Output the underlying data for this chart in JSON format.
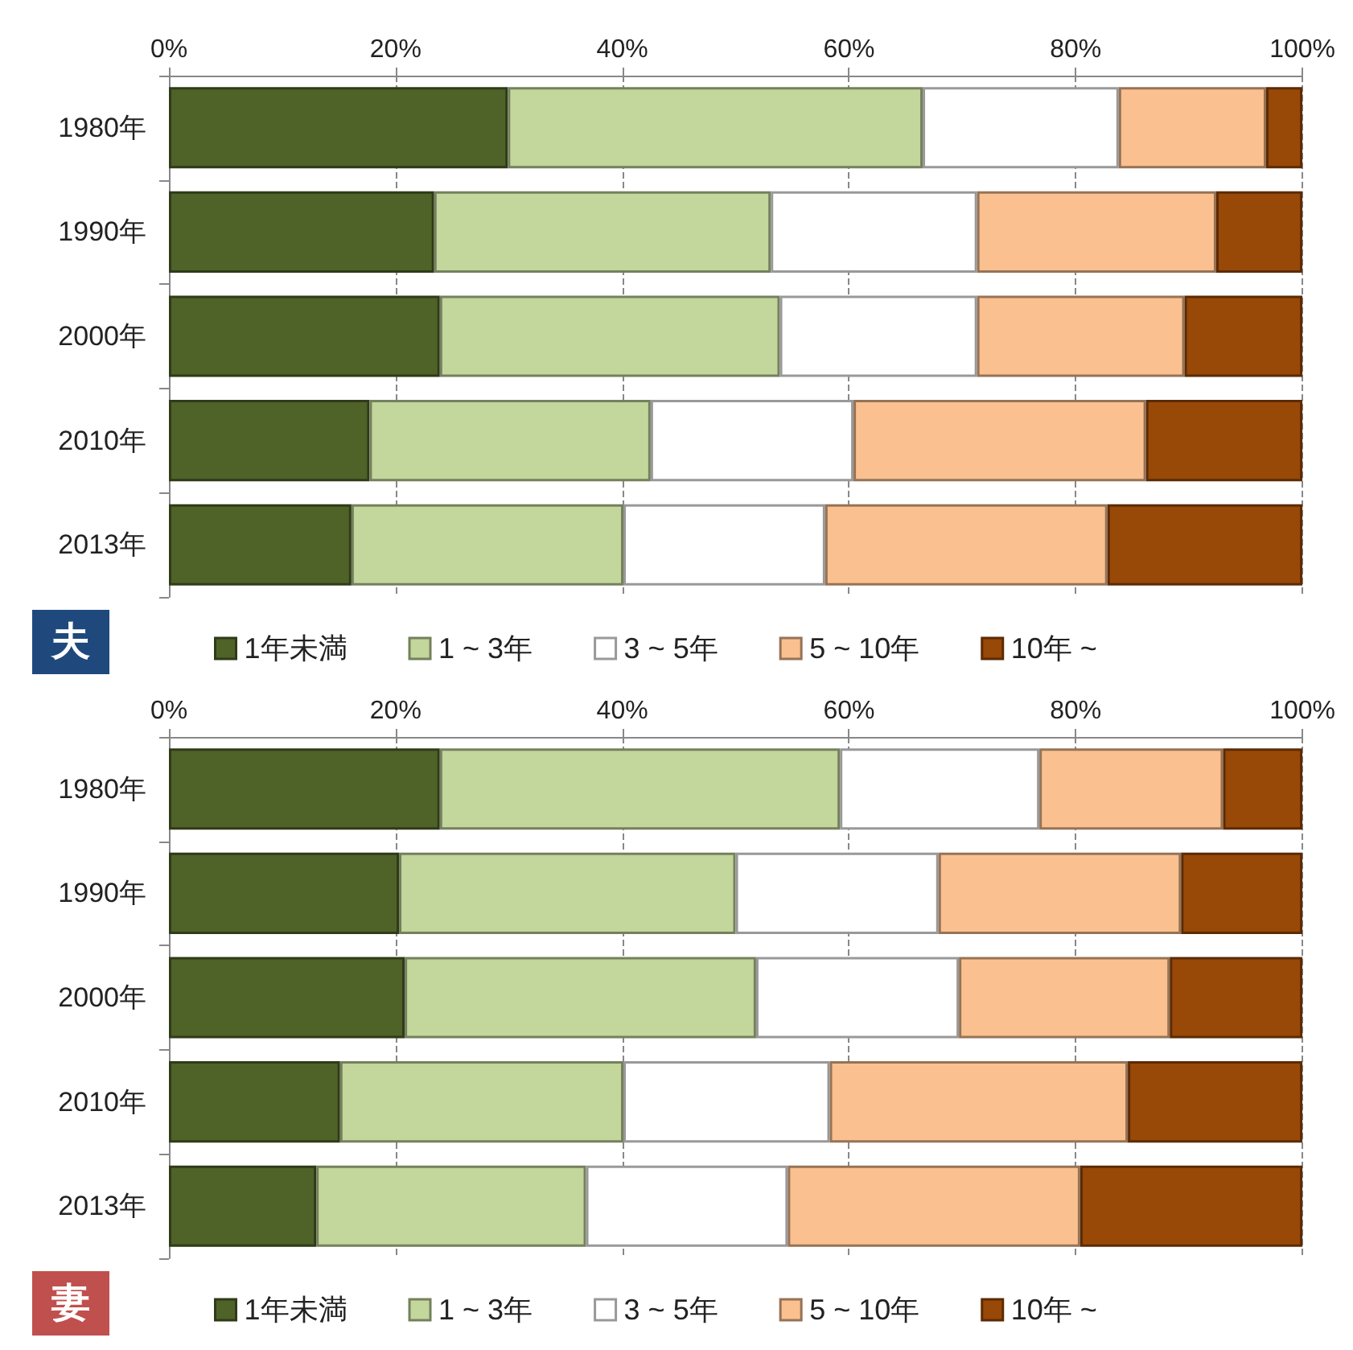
{
  "chart_data": [
    {
      "type": "bar",
      "orientation": "horizontal",
      "stacked": true,
      "title": "夫",
      "categories": [
        "1980年",
        "1990年",
        "2000年",
        "2010年",
        "2013年"
      ],
      "xlim": [
        0,
        100
      ],
      "xticks": [
        {
          "value": 0,
          "label": "0%"
        },
        {
          "value": 20,
          "label": "20%"
        },
        {
          "value": 40,
          "label": "40%"
        },
        {
          "value": 60,
          "label": "60%"
        },
        {
          "value": 80,
          "label": "80%"
        },
        {
          "value": 100,
          "label": "100%"
        }
      ],
      "grid": "x",
      "legend": "bottom",
      "series": [
        {
          "name": "1年未満",
          "color": "#4f6228",
          "values": [
            29.9,
            23.4,
            23.9,
            17.7,
            16.1
          ]
        },
        {
          "name": "1 ~ 3年",
          "color": "#c3d69b",
          "values": [
            36.6,
            29.7,
            30.0,
            24.8,
            24.0
          ]
        },
        {
          "name": "3 ~ 5年",
          "color": "#ffffff",
          "values": [
            17.3,
            18.2,
            17.4,
            17.9,
            17.8
          ]
        },
        {
          "name": "5 ~ 10年",
          "color": "#fac090",
          "values": [
            13.0,
            21.1,
            18.3,
            25.8,
            24.9
          ]
        },
        {
          "name": "10年 ~",
          "color": "#984807",
          "values": [
            3.2,
            7.6,
            10.4,
            13.8,
            17.2
          ]
        }
      ]
    },
    {
      "type": "bar",
      "orientation": "horizontal",
      "stacked": true,
      "title": "妻",
      "categories": [
        "1980年",
        "1990年",
        "2000年",
        "2010年",
        "2013年"
      ],
      "xlim": [
        0,
        100
      ],
      "xticks": [
        {
          "value": 0,
          "label": "0%"
        },
        {
          "value": 20,
          "label": "20%"
        },
        {
          "value": 40,
          "label": "40%"
        },
        {
          "value": 60,
          "label": "60%"
        },
        {
          "value": 80,
          "label": "80%"
        },
        {
          "value": 100,
          "label": "100%"
        }
      ],
      "grid": "x",
      "legend": "bottom",
      "series": [
        {
          "name": "1年未満",
          "color": "#4f6228",
          "values": [
            23.9,
            20.3,
            20.8,
            15.1,
            13.0
          ]
        },
        {
          "name": "1 ~ 3年",
          "color": "#c3d69b",
          "values": [
            35.3,
            29.7,
            31.0,
            25.0,
            23.8
          ]
        },
        {
          "name": "3 ~ 5年",
          "color": "#ffffff",
          "values": [
            17.6,
            17.9,
            17.9,
            18.2,
            17.8
          ]
        },
        {
          "name": "5 ~ 10年",
          "color": "#fac090",
          "values": [
            16.2,
            21.4,
            18.6,
            26.3,
            25.8
          ]
        },
        {
          "name": "10年 ~",
          "color": "#984807",
          "values": [
            7.0,
            10.7,
            11.7,
            15.4,
            19.6
          ]
        }
      ]
    }
  ]
}
